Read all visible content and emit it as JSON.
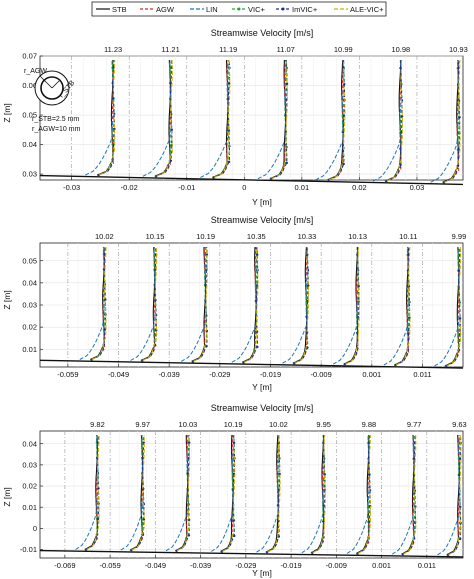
{
  "legend": [
    {
      "name": "STB",
      "color": "#111111",
      "dash": "",
      "marker": "none"
    },
    {
      "name": "AGW",
      "color": "#d62728",
      "dash": "3,2",
      "marker": "none"
    },
    {
      "name": "LIN",
      "color": "#1f77b4",
      "dash": "4,2",
      "marker": "none"
    },
    {
      "name": "VIC+",
      "color": "#2ca02c",
      "dash": "3,2",
      "marker": "dot"
    },
    {
      "name": "ImVIC+",
      "color": "#1e2d8c",
      "dash": "3,2",
      "marker": "dot"
    },
    {
      "name": "ALE-VIC+",
      "color": "#c8b400",
      "dash": "4,2",
      "marker": "none"
    }
  ],
  "inset": {
    "r_stb_label": "r_STB=2.5 mm",
    "r_agw_label": "r_AGW=10 mm",
    "r_agw_sym": "r_AGW",
    "r_stb_sym": "r_STB"
  },
  "chart_data": [
    {
      "type": "line",
      "title": "Streamwise Velocity [m/s]",
      "xlabel": "Y [m]",
      "ylabel": "Z [m]",
      "xticks": [
        "-0.03",
        "-0.02",
        "-0.01",
        "0",
        "0.01",
        "0.02",
        "0.03"
      ],
      "yticks": [
        "0.03",
        "0.04",
        "0.05",
        "0.06",
        "0.07"
      ],
      "ylim": [
        0.028,
        0.07
      ],
      "profile_velocities": [
        "11.23",
        "11.21",
        "11.19",
        "11.07",
        "10.99",
        "10.98",
        "10.93"
      ],
      "wall_z": {
        "left": 0.0295,
        "right": 0.0265
      },
      "grid": true
    },
    {
      "type": "line",
      "title": "Streamwise Velocity [m/s]",
      "xlabel": "Y [m]",
      "ylabel": "Z [m]",
      "xticks": [
        "-0.059",
        "-0.049",
        "-0.039",
        "-0.029",
        "-0.019",
        "-0.009",
        "0.001",
        "0.011"
      ],
      "yticks": [
        "0.01",
        "0.02",
        "0.03",
        "0.04",
        "0.05"
      ],
      "ylim": [
        0.002,
        0.058
      ],
      "profile_velocities": [
        "10.02",
        "10.15",
        "10.19",
        "10.35",
        "10.33",
        "10.13",
        "10.11",
        "9.99"
      ],
      "wall_z": {
        "left": 0.005,
        "right": 0.0015
      },
      "grid": true
    },
    {
      "type": "line",
      "title": "Streamwise Velocity [m/s]",
      "xlabel": "Y [m]",
      "ylabel": "Z [m]",
      "xticks": [
        "-0.069",
        "-0.059",
        "-0.049",
        "-0.039",
        "-0.029",
        "-0.019",
        "-0.009",
        "0.001",
        "0.011"
      ],
      "yticks": [
        "-0.01",
        "0",
        "0.01",
        "0.02",
        "0.03",
        "0.04"
      ],
      "ylim": [
        -0.014,
        0.046
      ],
      "profile_velocities": [
        "9.82",
        "9.97",
        "10.03",
        "10.19",
        "10.02",
        "9.95",
        "9.88",
        "9.77",
        "9.63"
      ],
      "wall_z": {
        "left": -0.0105,
        "right": -0.0135
      },
      "grid": true
    }
  ]
}
